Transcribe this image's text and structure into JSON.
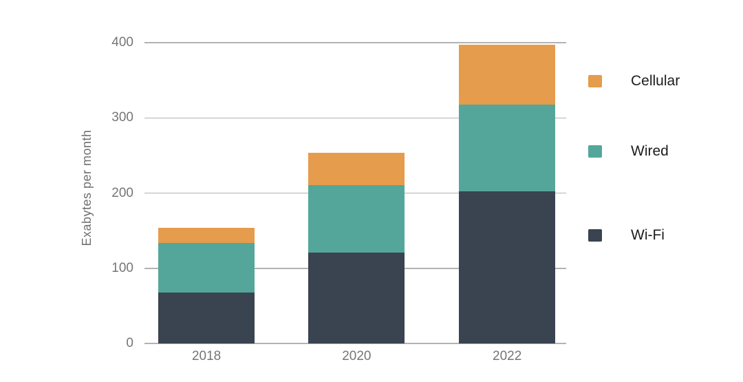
{
  "chart_data": {
    "type": "bar",
    "stacked": true,
    "title": "",
    "xlabel": "",
    "ylabel": "Exabytes per month",
    "categories": [
      "2018",
      "2020",
      "2022"
    ],
    "series": [
      {
        "name": "Wi-Fi",
        "color": "#3a4350",
        "values": [
          68,
          121,
          202
        ]
      },
      {
        "name": "Wired",
        "color": "#54a69a",
        "values": [
          66,
          90,
          116
        ]
      },
      {
        "name": "Cellular",
        "color": "#e59c4c",
        "values": [
          20,
          43,
          79
        ]
      }
    ],
    "totals": [
      154,
      254,
      397
    ],
    "legend_order": [
      "Cellular",
      "Wired",
      "Wi-Fi"
    ],
    "legend_position": "right",
    "ylim": [
      0,
      400
    ],
    "yticks": [
      0,
      100,
      200,
      300,
      400
    ],
    "grid": true
  },
  "colors": {
    "background": "#ffffff",
    "gridline": "#b2b2b2",
    "axis_text": "#757575",
    "legend_text": "#1c1c1c"
  }
}
